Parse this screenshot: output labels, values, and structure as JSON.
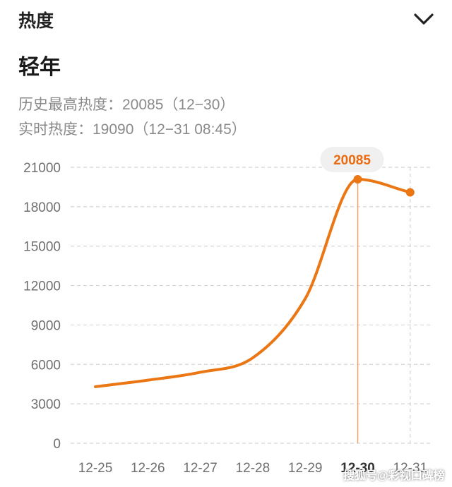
{
  "header": {
    "title": "热度",
    "toggle_icon": "chevron-down-icon"
  },
  "topic": {
    "name": "轻年"
  },
  "stats": {
    "peak_label": "历史最高热度：",
    "peak_value": "20085（12−30）",
    "current_label": "实时热度：",
    "current_value": "19090（12−31 08:45）"
  },
  "chart_data": {
    "type": "line",
    "categories": [
      "12-25",
      "12-26",
      "12-27",
      "12-28",
      "12-29",
      "12-30",
      "12-31"
    ],
    "series": [
      {
        "values": [
          4300,
          4800,
          5400,
          6500,
          11000,
          20085,
          19090
        ]
      }
    ],
    "ylim": [
      0,
      21000
    ],
    "yticks": [
      0,
      3000,
      6000,
      9000,
      12000,
      15000,
      18000,
      21000
    ],
    "highlight": {
      "category": "12-30",
      "value": 20085,
      "label": "20085"
    },
    "grid": true,
    "colors": {
      "line": "#ea7614",
      "marker_line": "#f1a467",
      "bubble_bg": "#f0f0f0",
      "bubble_text": "#ea6b12"
    }
  },
  "watermark": "搜狐号@彩视口碑榜"
}
